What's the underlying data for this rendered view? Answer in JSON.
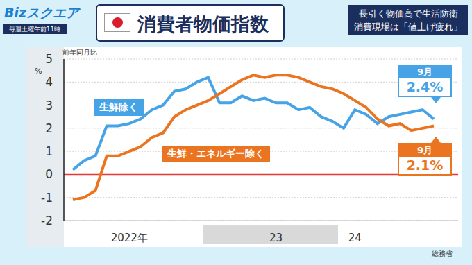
{
  "chart_data": {
    "type": "line",
    "title": "消費者物価指数",
    "program": "Bizスクエア",
    "schedule": "毎週土曜午前11時",
    "headline": [
      "長引く物価高で生活防衛",
      "消費現場は「値上げ疲れ」"
    ],
    "source": "総務省",
    "y_label": "前年同月比",
    "y_unit": "%",
    "categories": [
      null,
      null,
      null,
      null,
      null,
      "2022年",
      null,
      null,
      null,
      null,
      null,
      null,
      null,
      null,
      null,
      null,
      null,
      null,
      "23",
      null,
      null,
      null,
      null,
      null,
      null,
      "24",
      null,
      null,
      null,
      null,
      null,
      null,
      null
    ],
    "ylim": [
      -2,
      5
    ],
    "yticks": [
      -2,
      -1,
      0,
      1,
      2,
      3,
      4,
      5
    ],
    "grid": true,
    "baseline": 0,
    "series": [
      {
        "name": "生鮮除く",
        "color": "#45a3e6",
        "line_style": "solid",
        "values": [
          0.2,
          0.6,
          0.8,
          2.1,
          2.1,
          2.2,
          2.4,
          2.8,
          3.0,
          3.6,
          3.7,
          4.0,
          4.2,
          3.1,
          3.1,
          3.4,
          3.2,
          3.3,
          3.1,
          3.1,
          2.8,
          2.9,
          2.5,
          2.3,
          2.0,
          2.8,
          2.6,
          2.2,
          2.5,
          2.6,
          2.7,
          2.8,
          2.4
        ]
      },
      {
        "name": "生鮮・エネルギー除く",
        "color": "#eb7421",
        "line_style": "solid",
        "values": [
          -1.1,
          -1.0,
          -0.7,
          0.8,
          0.8,
          1.0,
          1.2,
          1.6,
          1.8,
          2.5,
          2.8,
          3.0,
          3.2,
          3.5,
          3.8,
          4.1,
          4.3,
          4.2,
          4.3,
          4.3,
          4.2,
          4.0,
          3.8,
          3.7,
          3.5,
          3.2,
          2.9,
          2.4,
          2.1,
          2.2,
          1.9,
          2.0,
          2.1
        ]
      }
    ],
    "annotations": [
      {
        "series": "生鮮除く",
        "label": "9月",
        "value": 2.4,
        "value_label": "2.4%"
      },
      {
        "series": "生鮮・エネルギー除く",
        "label": "9月",
        "value": 2.1,
        "value_label": "2.1%"
      }
    ]
  }
}
